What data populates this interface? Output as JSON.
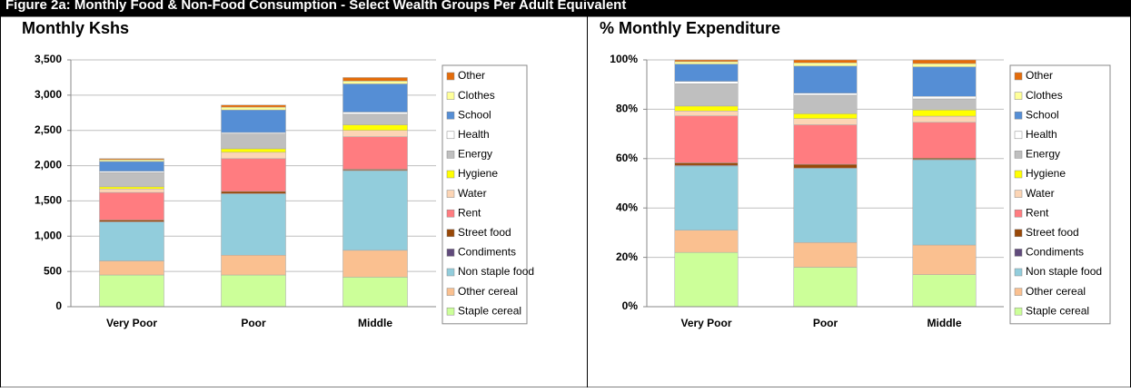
{
  "figure_title": "Figure 2a: Monthly Food & Non-Food Consumption - Select Wealth Groups Per Adult Equivalent",
  "chart_data": [
    {
      "type": "stacked_bar",
      "title": "Monthly Kshs",
      "categories": [
        "Very Poor",
        "Poor",
        "Middle"
      ],
      "ylim": [
        0,
        3500
      ],
      "yticks": [
        0,
        500,
        {
          "value": 1000,
          "label": "1,000"
        },
        {
          "value": 1500,
          "label": "1,500"
        },
        {
          "value": 2000,
          "label": "2,000"
        },
        {
          "value": 2500,
          "label": "2,500"
        },
        {
          "value": 3000,
          "label": "3,000"
        },
        {
          "value": 3500,
          "label": "3,500"
        }
      ],
      "grid": true,
      "series": [
        {
          "name": "Staple cereal",
          "color": "#ccff99",
          "values": [
            450,
            450,
            420
          ]
        },
        {
          "name": "Other cereal",
          "color": "#fac090",
          "values": [
            200,
            280,
            380
          ]
        },
        {
          "name": "Non staple food",
          "color": "#92cddc",
          "values": [
            550,
            870,
            1130
          ]
        },
        {
          "name": "Condiments",
          "color": "#604a7b",
          "values": [
            5,
            5,
            5
          ]
        },
        {
          "name": "Street food",
          "color": "#984807",
          "values": [
            25,
            30,
            15
          ]
        },
        {
          "name": "Rent",
          "color": "#ff7c80",
          "values": [
            390,
            465,
            460
          ]
        },
        {
          "name": "Water",
          "color": "#fcd5b5",
          "values": [
            50,
            90,
            90
          ]
        },
        {
          "name": "Hygiene",
          "color": "#ffff00",
          "values": [
            30,
            50,
            80
          ]
        },
        {
          "name": "Energy",
          "color": "#bfbfbf",
          "values": [
            200,
            210,
            150
          ]
        },
        {
          "name": "Health",
          "color": "#ffffff",
          "values": [
            20,
            20,
            30
          ]
        },
        {
          "name": "School",
          "color": "#558ed5",
          "values": [
            140,
            320,
            400
          ]
        },
        {
          "name": "Clothes",
          "color": "#ffff99",
          "values": [
            25,
            40,
            40
          ]
        },
        {
          "name": "Other",
          "color": "#e46c0a",
          "values": [
            15,
            30,
            50
          ]
        }
      ]
    },
    {
      "type": "stacked_bar",
      "title": "% Monthly Expenditure",
      "categories": [
        "Very Poor",
        "Poor",
        "Middle"
      ],
      "ylim": [
        0,
        100
      ],
      "yticks": [
        {
          "value": 0,
          "label": "0%"
        },
        {
          "value": 20,
          "label": "20%"
        },
        {
          "value": 40,
          "label": "40%"
        },
        {
          "value": 60,
          "label": "60%"
        },
        {
          "value": 80,
          "label": "80%"
        },
        {
          "value": 100,
          "label": "100%"
        }
      ],
      "grid": true,
      "series": [
        {
          "name": "Staple cereal",
          "color": "#ccff99",
          "values": [
            22,
            16,
            13
          ]
        },
        {
          "name": "Other cereal",
          "color": "#fac090",
          "values": [
            9,
            10,
            12
          ]
        },
        {
          "name": "Non staple food",
          "color": "#92cddc",
          "values": [
            26,
            30,
            34.5
          ]
        },
        {
          "name": "Condiments",
          "color": "#604a7b",
          "values": [
            0.3,
            0.2,
            0.2
          ]
        },
        {
          "name": "Street food",
          "color": "#984807",
          "values": [
            1,
            1.5,
            0.5
          ]
        },
        {
          "name": "Rent",
          "color": "#ff7c80",
          "values": [
            19,
            16,
            14.5
          ]
        },
        {
          "name": "Water",
          "color": "#fcd5b5",
          "values": [
            2,
            2.5,
            2.5
          ]
        },
        {
          "name": "Hygiene",
          "color": "#ffff00",
          "values": [
            2,
            2,
            2.5
          ]
        },
        {
          "name": "Energy",
          "color": "#bfbfbf",
          "values": [
            9,
            7.5,
            4.5
          ]
        },
        {
          "name": "Health",
          "color": "#ffffff",
          "values": [
            1,
            0.8,
            1
          ]
        },
        {
          "name": "School",
          "color": "#558ed5",
          "values": [
            7,
            11,
            12
          ]
        },
        {
          "name": "Clothes",
          "color": "#ffff99",
          "values": [
            1,
            1.3,
            1.3
          ]
        },
        {
          "name": "Other",
          "color": "#e46c0a",
          "values": [
            0.7,
            1.2,
            1.5
          ]
        }
      ]
    }
  ]
}
